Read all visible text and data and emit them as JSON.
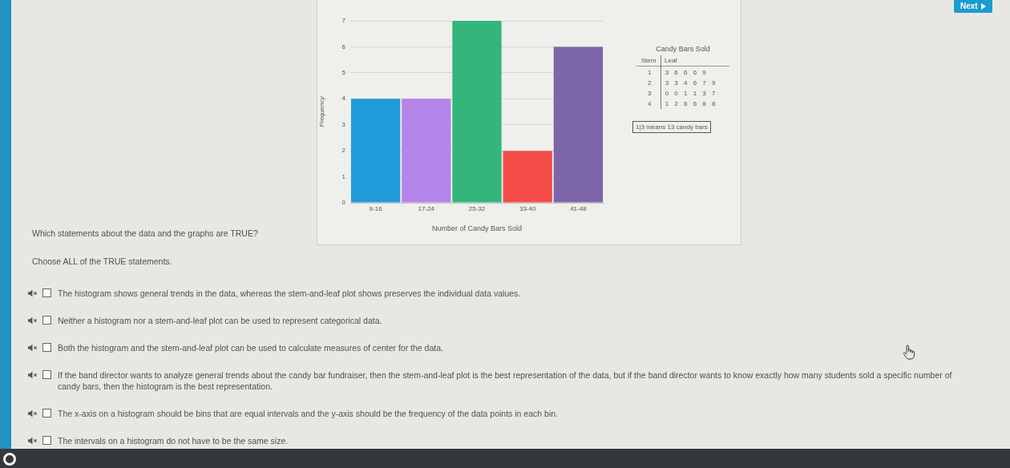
{
  "chart_data": [
    {
      "type": "bar",
      "categories": [
        "9-16",
        "17-24",
        "25-32",
        "33-40",
        "41-48"
      ],
      "values": [
        4,
        4,
        7,
        2,
        6
      ],
      "colors": [
        "#1e9bd8",
        "#b584e8",
        "#33b57b",
        "#f34c46",
        "#7c65a8"
      ],
      "xlabel": "Number of Candy Bars Sold",
      "ylabel": "Frequency",
      "ylim": [
        0,
        7
      ],
      "yticks": [
        0,
        1,
        2,
        3,
        4,
        5,
        6,
        7
      ],
      "grid": "y"
    },
    {
      "type": "other",
      "title": "Candy Bars Sold",
      "annotations": [
        "Stem",
        "Leaf",
        "1 3 6 6 6 9",
        "2 3 3 4 6 7 9",
        "3 0 0 1 1 3 7",
        "4 1 2 6 6 8 8",
        "1|3 means 13 candy bars"
      ]
    },
    {
      "type": "other",
      "title": "Which statements about the data and the graphs are TRUE?",
      "subtitle": "Choose ALL of the TRUE statements.",
      "annotations": [
        "The histogram shows general trends in the data, whereas the stem-and-leaf plot shows preserves the individual data values.",
        "Neither a histogram nor a stem-and-leaf plot can be used to represent categorical data.",
        "Both the histogram and the stem-and-leaf plot can be used to calculate measures of center for the data.",
        "If the band director wants to analyze general trends about the candy bar fundraiser, then the stem-and-leaf plot is the best representation of the data, but if the band director wants to know exactly how many students sold a specific number of candy bars, then the histogram is the best representation.",
        "The x-axis on a histogram should be bins that are equal intervals and the y-axis should be the frequency of the data points in each bin.",
        "The intervals on a histogram do not have to be the same size."
      ]
    },
    {
      "type": "other",
      "annotations": [
        "Next"
      ]
    }
  ]
}
